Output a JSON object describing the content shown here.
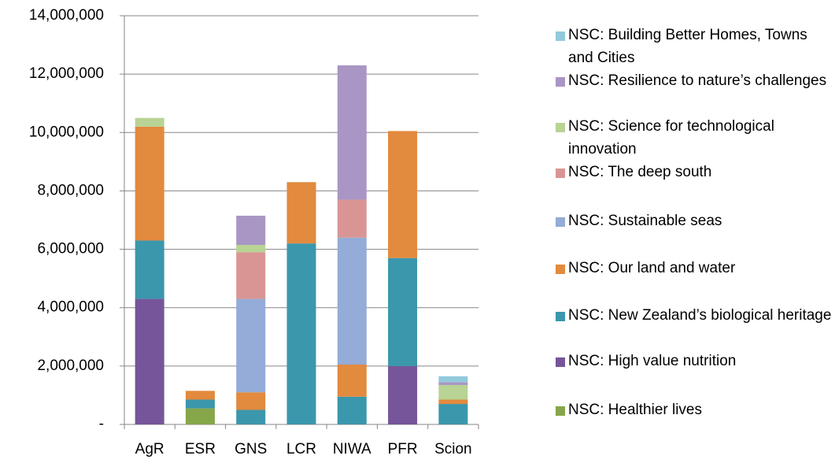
{
  "chart_data": {
    "type": "stacked_bar",
    "categories": [
      "AgR",
      "ESR",
      "GNS",
      "LCR",
      "NIWA",
      "PFR",
      "Scion"
    ],
    "series": [
      {
        "name": "NSC: Healthier lives",
        "color": "#86a64a",
        "values": [
          0,
          550000,
          0,
          0,
          0,
          0,
          0
        ]
      },
      {
        "name": "NSC: High value nutrition",
        "color": "#76559a",
        "values": [
          4300000,
          0,
          0,
          0,
          0,
          2000000,
          0
        ]
      },
      {
        "name": "NSC: New Zealand’s biological heritage",
        "color": "#3b97ac",
        "values": [
          2000000,
          300000,
          500000,
          6200000,
          950000,
          3700000,
          700000
        ]
      },
      {
        "name": "NSC: Our land and water",
        "color": "#e28a3d",
        "values": [
          3900000,
          300000,
          600000,
          2100000,
          1100000,
          4350000,
          150000
        ]
      },
      {
        "name": "NSC: Sustainable seas",
        "color": "#94acd7",
        "values": [
          0,
          0,
          3200000,
          0,
          4350000,
          0,
          0
        ]
      },
      {
        "name": "NSC: The deep south",
        "color": "#d99594",
        "values": [
          0,
          0,
          1600000,
          0,
          1300000,
          0,
          0
        ]
      },
      {
        "name": "NSC: Science for technological innovation",
        "color": "#b8d394",
        "values": [
          300000,
          0,
          250000,
          0,
          0,
          0,
          500000
        ]
      },
      {
        "name": "NSC: Resilience to nature’s challenges",
        "color": "#a996c4",
        "values": [
          0,
          0,
          1000000,
          0,
          4600000,
          0,
          100000
        ]
      },
      {
        "name": "NSC: Building Better Homes, Towns and Cities",
        "color": "#93c9dc",
        "values": [
          0,
          0,
          0,
          0,
          0,
          0,
          200000
        ]
      }
    ],
    "ylim": [
      0,
      14000000
    ],
    "yticks": [
      {
        "value": 0,
        "label": "-"
      },
      {
        "value": 2000000,
        "label": "2,000,000"
      },
      {
        "value": 4000000,
        "label": "4,000,000"
      },
      {
        "value": 6000000,
        "label": "6,000,000"
      },
      {
        "value": 8000000,
        "label": "8,000,000"
      },
      {
        "value": 10000000,
        "label": "10,000,000"
      },
      {
        "value": 12000000,
        "label": "12,000,000"
      },
      {
        "value": 14000000,
        "label": "14,000,000"
      }
    ],
    "grid": true,
    "legend": "right"
  }
}
